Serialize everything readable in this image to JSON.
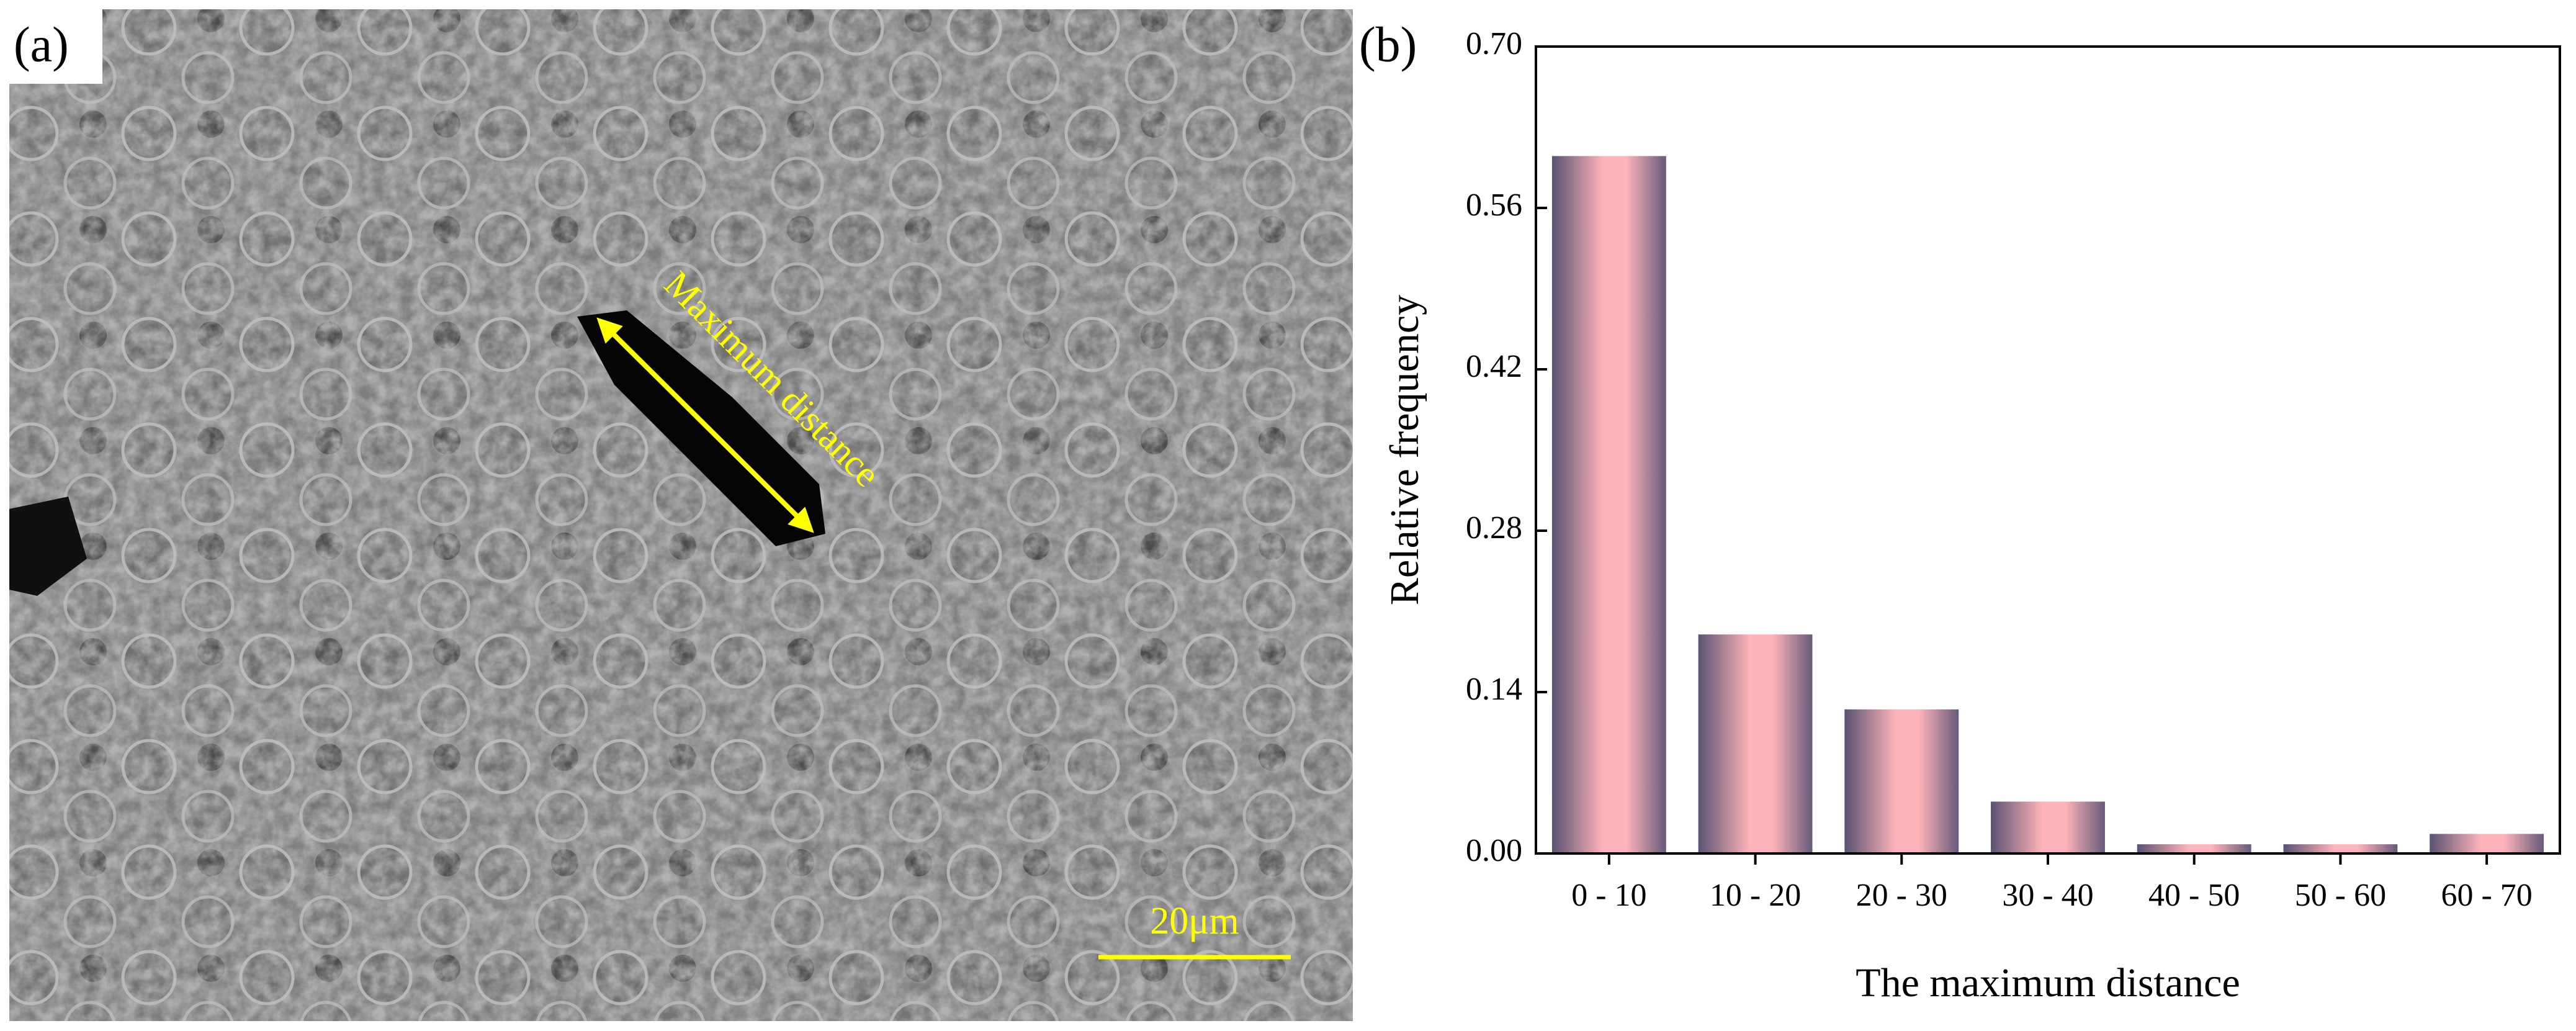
{
  "image_panel": {
    "label": "(a)",
    "annotation": "Maximum distance",
    "scale_bar": "20μm"
  },
  "chart_data": {
    "type": "bar",
    "panel_label": "(b)",
    "x_label": "The maximum distance",
    "y_label": "Relative frequency",
    "categories": [
      "0 - 10",
      "10 - 20",
      "20 - 30",
      "30 - 40",
      "40 - 50",
      "50 - 60",
      "60 - 70"
    ],
    "values": [
      0.605,
      0.19,
      0.125,
      0.045,
      0.008,
      0.008,
      0.017
    ],
    "color": "#ffb3ba",
    "ylim": [
      0,
      0.7
    ],
    "yticks": [
      {
        "value": 0,
        "label": "0.00"
      },
      {
        "value": 0.14,
        "label": "0.14"
      },
      {
        "value": 0.28,
        "label": "0.28"
      },
      {
        "value": 0.42,
        "label": "0.42"
      },
      {
        "value": 0.56,
        "label": "0.56"
      },
      {
        "value": 0.7,
        "label": "0.70"
      }
    ],
    "grid": false
  }
}
